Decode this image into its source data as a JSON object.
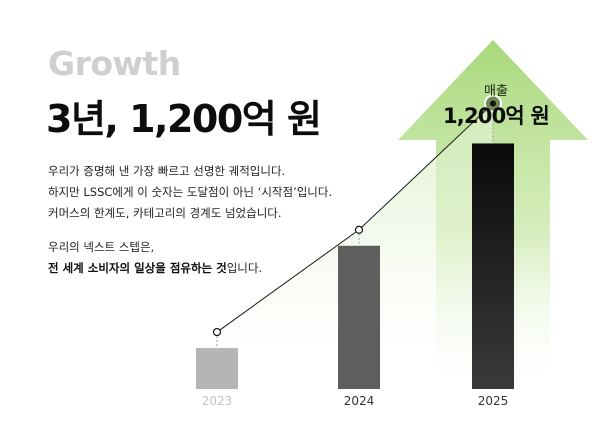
{
  "header": {
    "eyebrow": "Growth",
    "headline": "3년, 1,200억 원"
  },
  "body": {
    "paragraph1": [
      "우리가 증명해 낸 가장 빠르고 선명한 궤적입니다.",
      "하지만 LSSC에게 이 숫자는 도달점이 아닌 ‘시작점’입니다.",
      "커머스의 한계도, 카테고리의 경계도 넘었습니다."
    ],
    "paragraph2_line1": "우리의 넥스트 스텝은,",
    "paragraph2_line2_bold": "전 세계 소비자의 일상을 점유하는 것",
    "paragraph2_line2_rest": "입니다."
  },
  "callout": {
    "label": "매출",
    "value": "1,200억 원"
  },
  "colors": {
    "accent_green": "#a8d87a",
    "bar_2023": "#b5b5b5",
    "bar_2024": "#5e5e5e",
    "bar_2025": "#111111",
    "year_muted": "#c4c4c4",
    "year_dark": "#333333"
  },
  "chart_data": {
    "type": "bar",
    "categories": [
      "2023",
      "2024",
      "2025"
    ],
    "values": [
      20,
      70,
      120
    ],
    "ylim": [
      0,
      130
    ],
    "grid": false,
    "legend": "none",
    "trend_line": true
  }
}
